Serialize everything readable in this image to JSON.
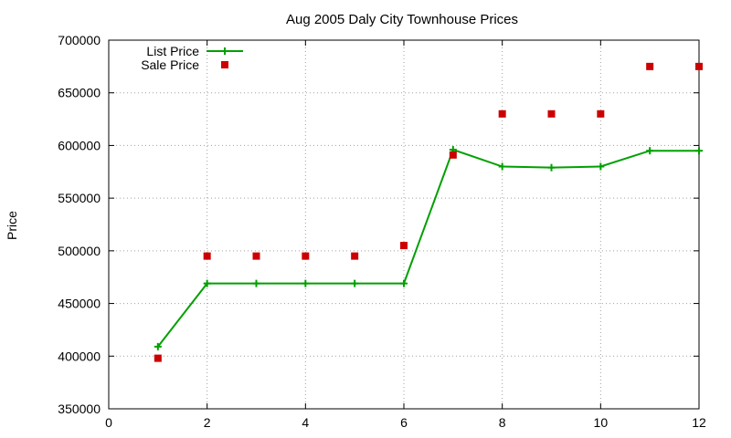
{
  "chart_data": {
    "type": "line",
    "title": "Aug 2005 Daly City Townhouse Prices",
    "xlabel": "",
    "ylabel": "Price",
    "xlim": [
      0,
      12
    ],
    "ylim": [
      350000,
      700000
    ],
    "xticks": [
      0,
      2,
      4,
      6,
      8,
      10,
      12
    ],
    "yticks": [
      350000,
      400000,
      450000,
      500000,
      550000,
      600000,
      650000,
      700000
    ],
    "grid": true,
    "legend_position": "top-left",
    "series": [
      {
        "name": "List Price",
        "style": "lines+crosses",
        "color": "#00a000",
        "x": [
          1,
          2,
          3,
          4,
          5,
          6,
          7,
          8,
          9,
          10,
          11,
          12
        ],
        "y": [
          409000,
          469000,
          469000,
          469000,
          469000,
          469000,
          596000,
          580000,
          579000,
          580000,
          595000,
          595000
        ]
      },
      {
        "name": "Sale Price",
        "style": "squares",
        "color": "#cc0000",
        "x": [
          1,
          2,
          3,
          4,
          5,
          6,
          7,
          8,
          9,
          10,
          11,
          12
        ],
        "y": [
          398000,
          495000,
          495000,
          495000,
          495000,
          505000,
          591000,
          630000,
          630000,
          630000,
          675000,
          675000
        ]
      }
    ]
  }
}
